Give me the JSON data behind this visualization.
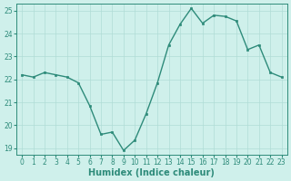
{
  "x": [
    0,
    1,
    2,
    3,
    4,
    5,
    6,
    7,
    8,
    9,
    10,
    11,
    12,
    13,
    14,
    15,
    16,
    17,
    18,
    19,
    20,
    21,
    22,
    23
  ],
  "y": [
    22.2,
    22.1,
    22.3,
    22.2,
    22.1,
    21.85,
    20.85,
    19.6,
    19.7,
    18.9,
    19.35,
    20.5,
    21.85,
    23.5,
    24.4,
    25.1,
    24.45,
    24.8,
    24.75,
    24.55,
    23.3,
    23.5,
    22.3,
    22.1
  ],
  "xlabel": "Humidex (Indice chaleur)",
  "ylim": [
    19,
    25
  ],
  "yticks": [
    19,
    20,
    21,
    22,
    23,
    24,
    25
  ],
  "xticks": [
    0,
    1,
    2,
    3,
    4,
    5,
    6,
    7,
    8,
    9,
    10,
    11,
    12,
    13,
    14,
    15,
    16,
    17,
    18,
    19,
    20,
    21,
    22,
    23
  ],
  "line_color": "#2e8b7a",
  "marker_color": "#2e8b7a",
  "bg_color": "#cff0eb",
  "grid_color": "#b0dcd6",
  "axes_color": "#2e8b7a",
  "tick_color": "#2e8b7a",
  "label_color": "#2e8b7a",
  "xlabel_fontsize": 7,
  "tick_fontsize": 5.5,
  "marker": "s",
  "marker_size": 2,
  "linewidth": 1.0
}
